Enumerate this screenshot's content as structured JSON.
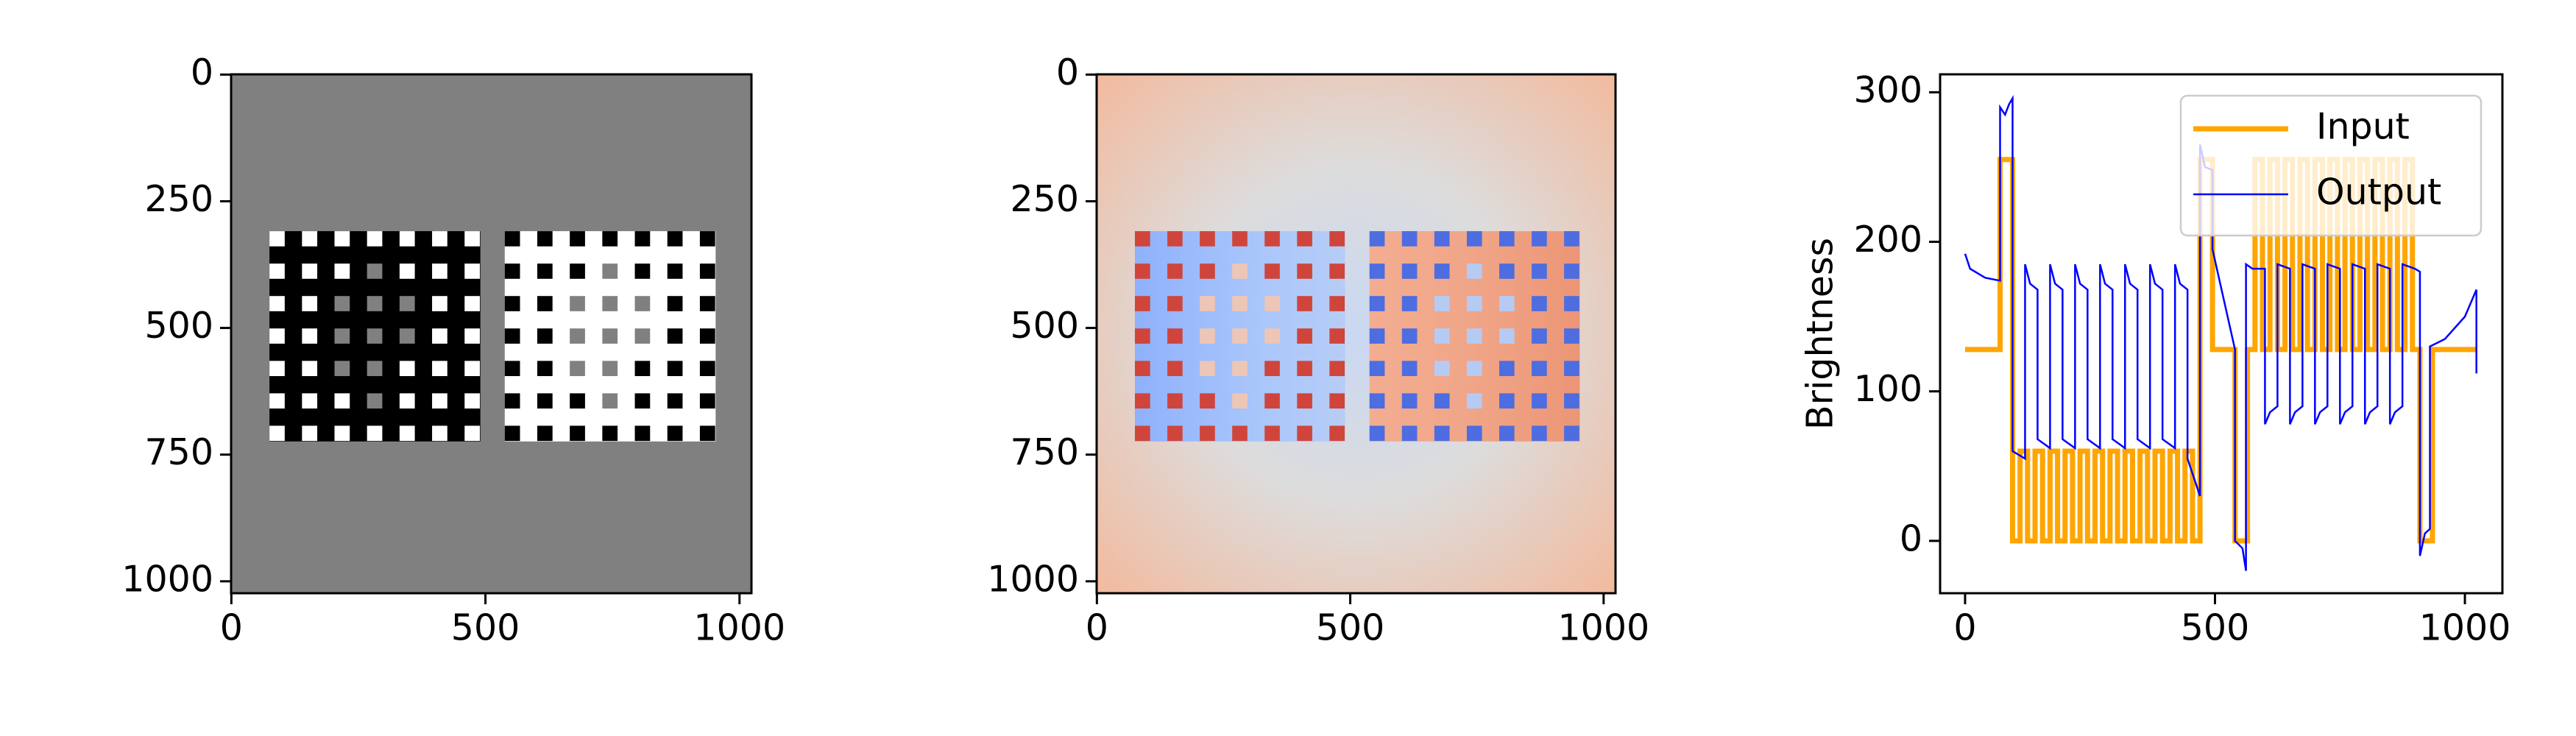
{
  "chart_data": [
    {
      "type": "image",
      "cmap": "gray",
      "xlim": [
        -0.5,
        1023.5
      ],
      "ylim": [
        1023.5,
        -0.5
      ],
      "xticks": [
        0,
        500,
        1000
      ],
      "yticks": [
        0,
        250,
        500,
        750,
        1000
      ]
    },
    {
      "type": "image",
      "cmap": "coolwarm",
      "xlim": [
        -0.5,
        1023.5
      ],
      "ylim": [
        1023.5,
        -0.5
      ],
      "xticks": [
        0,
        500,
        1000
      ],
      "yticks": [
        0,
        250,
        500,
        750,
        1000
      ]
    },
    {
      "type": "line",
      "ylabel": "Brightness",
      "xlim": [
        -50,
        1075
      ],
      "ylim": [
        -35,
        312
      ],
      "xticks": [
        0,
        500,
        1000
      ],
      "yticks": [
        0,
        100,
        200,
        300
      ],
      "legend": "upper right",
      "series": [
        {
          "name": "Input",
          "color": "#ffa500",
          "x": [
            0,
            70,
            70,
            95,
            95,
            110,
            110,
            125,
            125,
            140,
            140,
            155,
            155,
            170,
            170,
            185,
            185,
            200,
            200,
            215,
            215,
            230,
            230,
            245,
            245,
            260,
            260,
            275,
            275,
            290,
            290,
            305,
            305,
            320,
            320,
            335,
            335,
            350,
            350,
            365,
            365,
            380,
            380,
            395,
            395,
            410,
            410,
            425,
            425,
            440,
            440,
            455,
            455,
            470,
            470,
            495,
            495,
            540,
            540,
            565,
            565,
            580,
            580,
            595,
            595,
            610,
            610,
            625,
            625,
            640,
            640,
            655,
            655,
            670,
            670,
            685,
            685,
            700,
            700,
            715,
            715,
            730,
            730,
            745,
            745,
            760,
            760,
            775,
            775,
            790,
            790,
            805,
            805,
            820,
            820,
            835,
            835,
            850,
            850,
            865,
            865,
            880,
            880,
            895,
            895,
            910,
            910,
            935,
            935,
            1023
          ],
          "values": [
            128,
            128,
            255,
            255,
            0,
            0,
            60,
            60,
            0,
            0,
            60,
            60,
            0,
            0,
            60,
            60,
            0,
            0,
            60,
            60,
            0,
            0,
            60,
            60,
            0,
            0,
            60,
            60,
            0,
            0,
            60,
            60,
            0,
            0,
            60,
            60,
            0,
            0,
            60,
            60,
            0,
            0,
            60,
            60,
            0,
            0,
            60,
            60,
            0,
            0,
            60,
            60,
            0,
            0,
            255,
            255,
            128,
            128,
            0,
            0,
            128,
            128,
            255,
            255,
            128,
            128,
            255,
            255,
            128,
            128,
            255,
            255,
            128,
            128,
            255,
            255,
            128,
            128,
            255,
            255,
            128,
            128,
            255,
            255,
            128,
            128,
            255,
            255,
            128,
            128,
            255,
            255,
            128,
            128,
            255,
            255,
            128,
            128,
            255,
            255,
            128,
            128,
            255,
            255,
            128,
            128,
            0,
            0,
            128,
            128
          ]
        },
        {
          "name": "Output",
          "color": "#0000ff",
          "x": [
            0,
            10,
            40,
            70,
            70,
            80,
            88,
            95,
            95,
            120,
            120,
            130,
            145,
            145,
            170,
            170,
            180,
            195,
            195,
            220,
            220,
            230,
            245,
            245,
            270,
            270,
            280,
            295,
            295,
            320,
            320,
            330,
            345,
            345,
            370,
            370,
            380,
            395,
            395,
            420,
            420,
            430,
            445,
            445,
            470,
            470,
            480,
            495,
            495,
            540,
            540,
            555,
            562,
            562,
            575,
            600,
            600,
            610,
            625,
            625,
            650,
            650,
            660,
            675,
            675,
            700,
            700,
            710,
            725,
            725,
            750,
            750,
            760,
            775,
            775,
            800,
            800,
            810,
            825,
            825,
            850,
            850,
            860,
            875,
            875,
            900,
            910,
            910,
            920,
            930,
            930,
            960,
            1000,
            1023,
            1023
          ],
          "values": [
            192,
            182,
            176,
            174,
            290,
            285,
            292,
            296,
            60,
            55,
            185,
            172,
            168,
            68,
            62,
            185,
            172,
            168,
            68,
            62,
            185,
            172,
            168,
            68,
            62,
            185,
            172,
            168,
            68,
            62,
            185,
            172,
            168,
            68,
            62,
            185,
            172,
            168,
            68,
            62,
            185,
            172,
            168,
            55,
            30,
            265,
            250,
            248,
            195,
            128,
            0,
            -5,
            -20,
            185,
            182,
            182,
            78,
            86,
            90,
            185,
            182,
            78,
            86,
            90,
            185,
            182,
            78,
            86,
            90,
            185,
            182,
            78,
            86,
            90,
            185,
            182,
            78,
            86,
            90,
            185,
            182,
            78,
            86,
            90,
            185,
            182,
            180,
            -10,
            5,
            8,
            130,
            135,
            150,
            168,
            112
          ]
        }
      ]
    }
  ]
}
